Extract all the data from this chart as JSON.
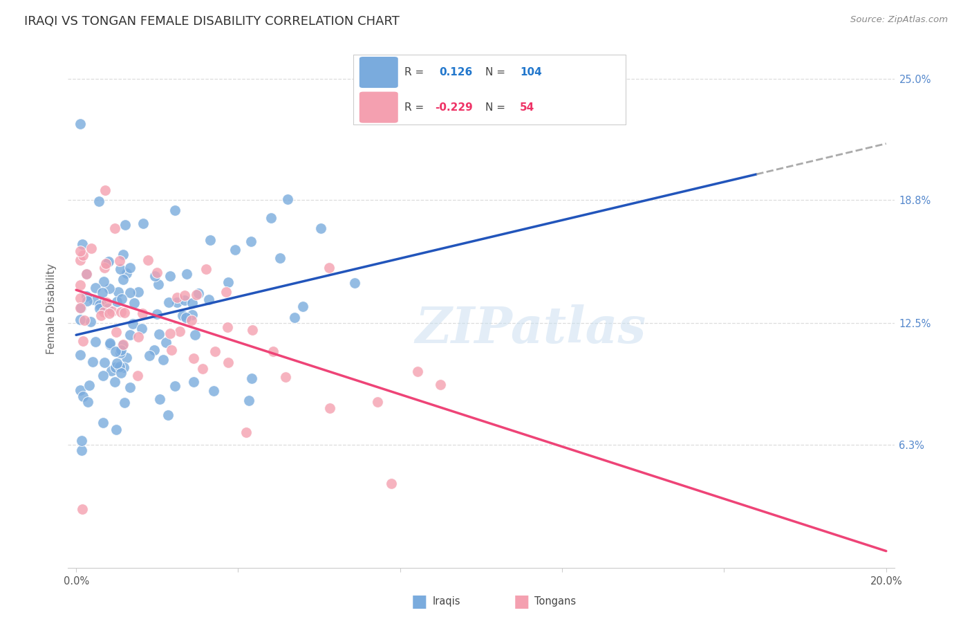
{
  "title": "IRAQI VS TONGAN FEMALE DISABILITY CORRELATION CHART",
  "source": "Source: ZipAtlas.com",
  "ylabel": "Female Disability",
  "xlim": [
    -0.002,
    0.202
  ],
  "ylim": [
    0.0,
    0.265
  ],
  "ytick_labels": [
    "6.3%",
    "12.5%",
    "18.8%",
    "25.0%"
  ],
  "ytick_values": [
    0.063,
    0.125,
    0.188,
    0.25
  ],
  "xtick_values": [
    0.0,
    0.04,
    0.08,
    0.12,
    0.16,
    0.2
  ],
  "xtick_labels": [
    "0.0%",
    "",
    "",
    "",
    "",
    "20.0%"
  ],
  "iraqi_R": 0.126,
  "iraqi_N": 104,
  "tongan_R": -0.229,
  "tongan_N": 54,
  "blue_color": "#7aabdd",
  "pink_color": "#f4a0b0",
  "blue_line_color": "#2255bb",
  "pink_line_color": "#ee4477",
  "watermark": "ZIPatlas",
  "background_color": "#ffffff",
  "grid_color": "#dddddd",
  "right_axis_color": "#5588cc",
  "title_fontsize": 13,
  "axis_label_fontsize": 11,
  "tick_fontsize": 10.5
}
